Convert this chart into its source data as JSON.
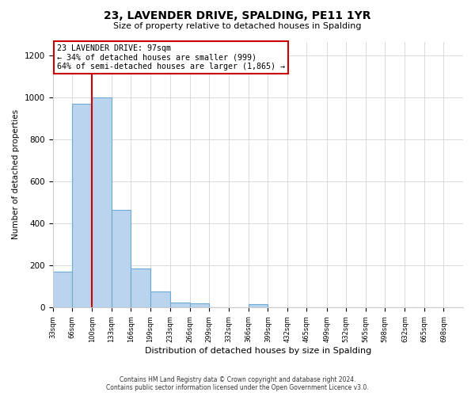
{
  "title": "23, LAVENDER DRIVE, SPALDING, PE11 1YR",
  "subtitle": "Size of property relative to detached houses in Spalding",
  "xlabel": "Distribution of detached houses by size in Spalding",
  "ylabel": "Number of detached properties",
  "bin_edges": [
    33,
    66,
    100,
    133,
    166,
    199,
    233,
    266,
    299,
    332,
    366,
    399,
    432,
    465,
    499,
    532,
    565,
    598,
    632,
    665,
    698
  ],
  "bin_heights": [
    170,
    970,
    1000,
    465,
    185,
    75,
    22,
    18,
    0,
    0,
    15,
    0,
    0,
    0,
    0,
    0,
    0,
    0,
    0,
    0
  ],
  "bar_color": "#bad4ee",
  "bar_edge_color": "#6aaad4",
  "vline_x": 100,
  "vline_color": "#cc0000",
  "annotation_text": "23 LAVENDER DRIVE: 97sqm\n← 34% of detached houses are smaller (999)\n64% of semi-detached houses are larger (1,865) →",
  "annotation_box_color": "#ffffff",
  "annotation_box_edge_color": "#cc0000",
  "ylim": [
    0,
    1265
  ],
  "yticks": [
    0,
    200,
    400,
    600,
    800,
    1000,
    1200
  ],
  "tick_labels": [
    "33sqm",
    "66sqm",
    "100sqm",
    "133sqm",
    "166sqm",
    "199sqm",
    "233sqm",
    "266sqm",
    "299sqm",
    "332sqm",
    "366sqm",
    "399sqm",
    "432sqm",
    "465sqm",
    "499sqm",
    "532sqm",
    "565sqm",
    "598sqm",
    "632sqm",
    "665sqm",
    "698sqm"
  ],
  "footer_line1": "Contains HM Land Registry data © Crown copyright and database right 2024.",
  "footer_line2": "Contains public sector information licensed under the Open Government Licence v3.0.",
  "background_color": "#ffffff",
  "grid_color": "#cccccc"
}
